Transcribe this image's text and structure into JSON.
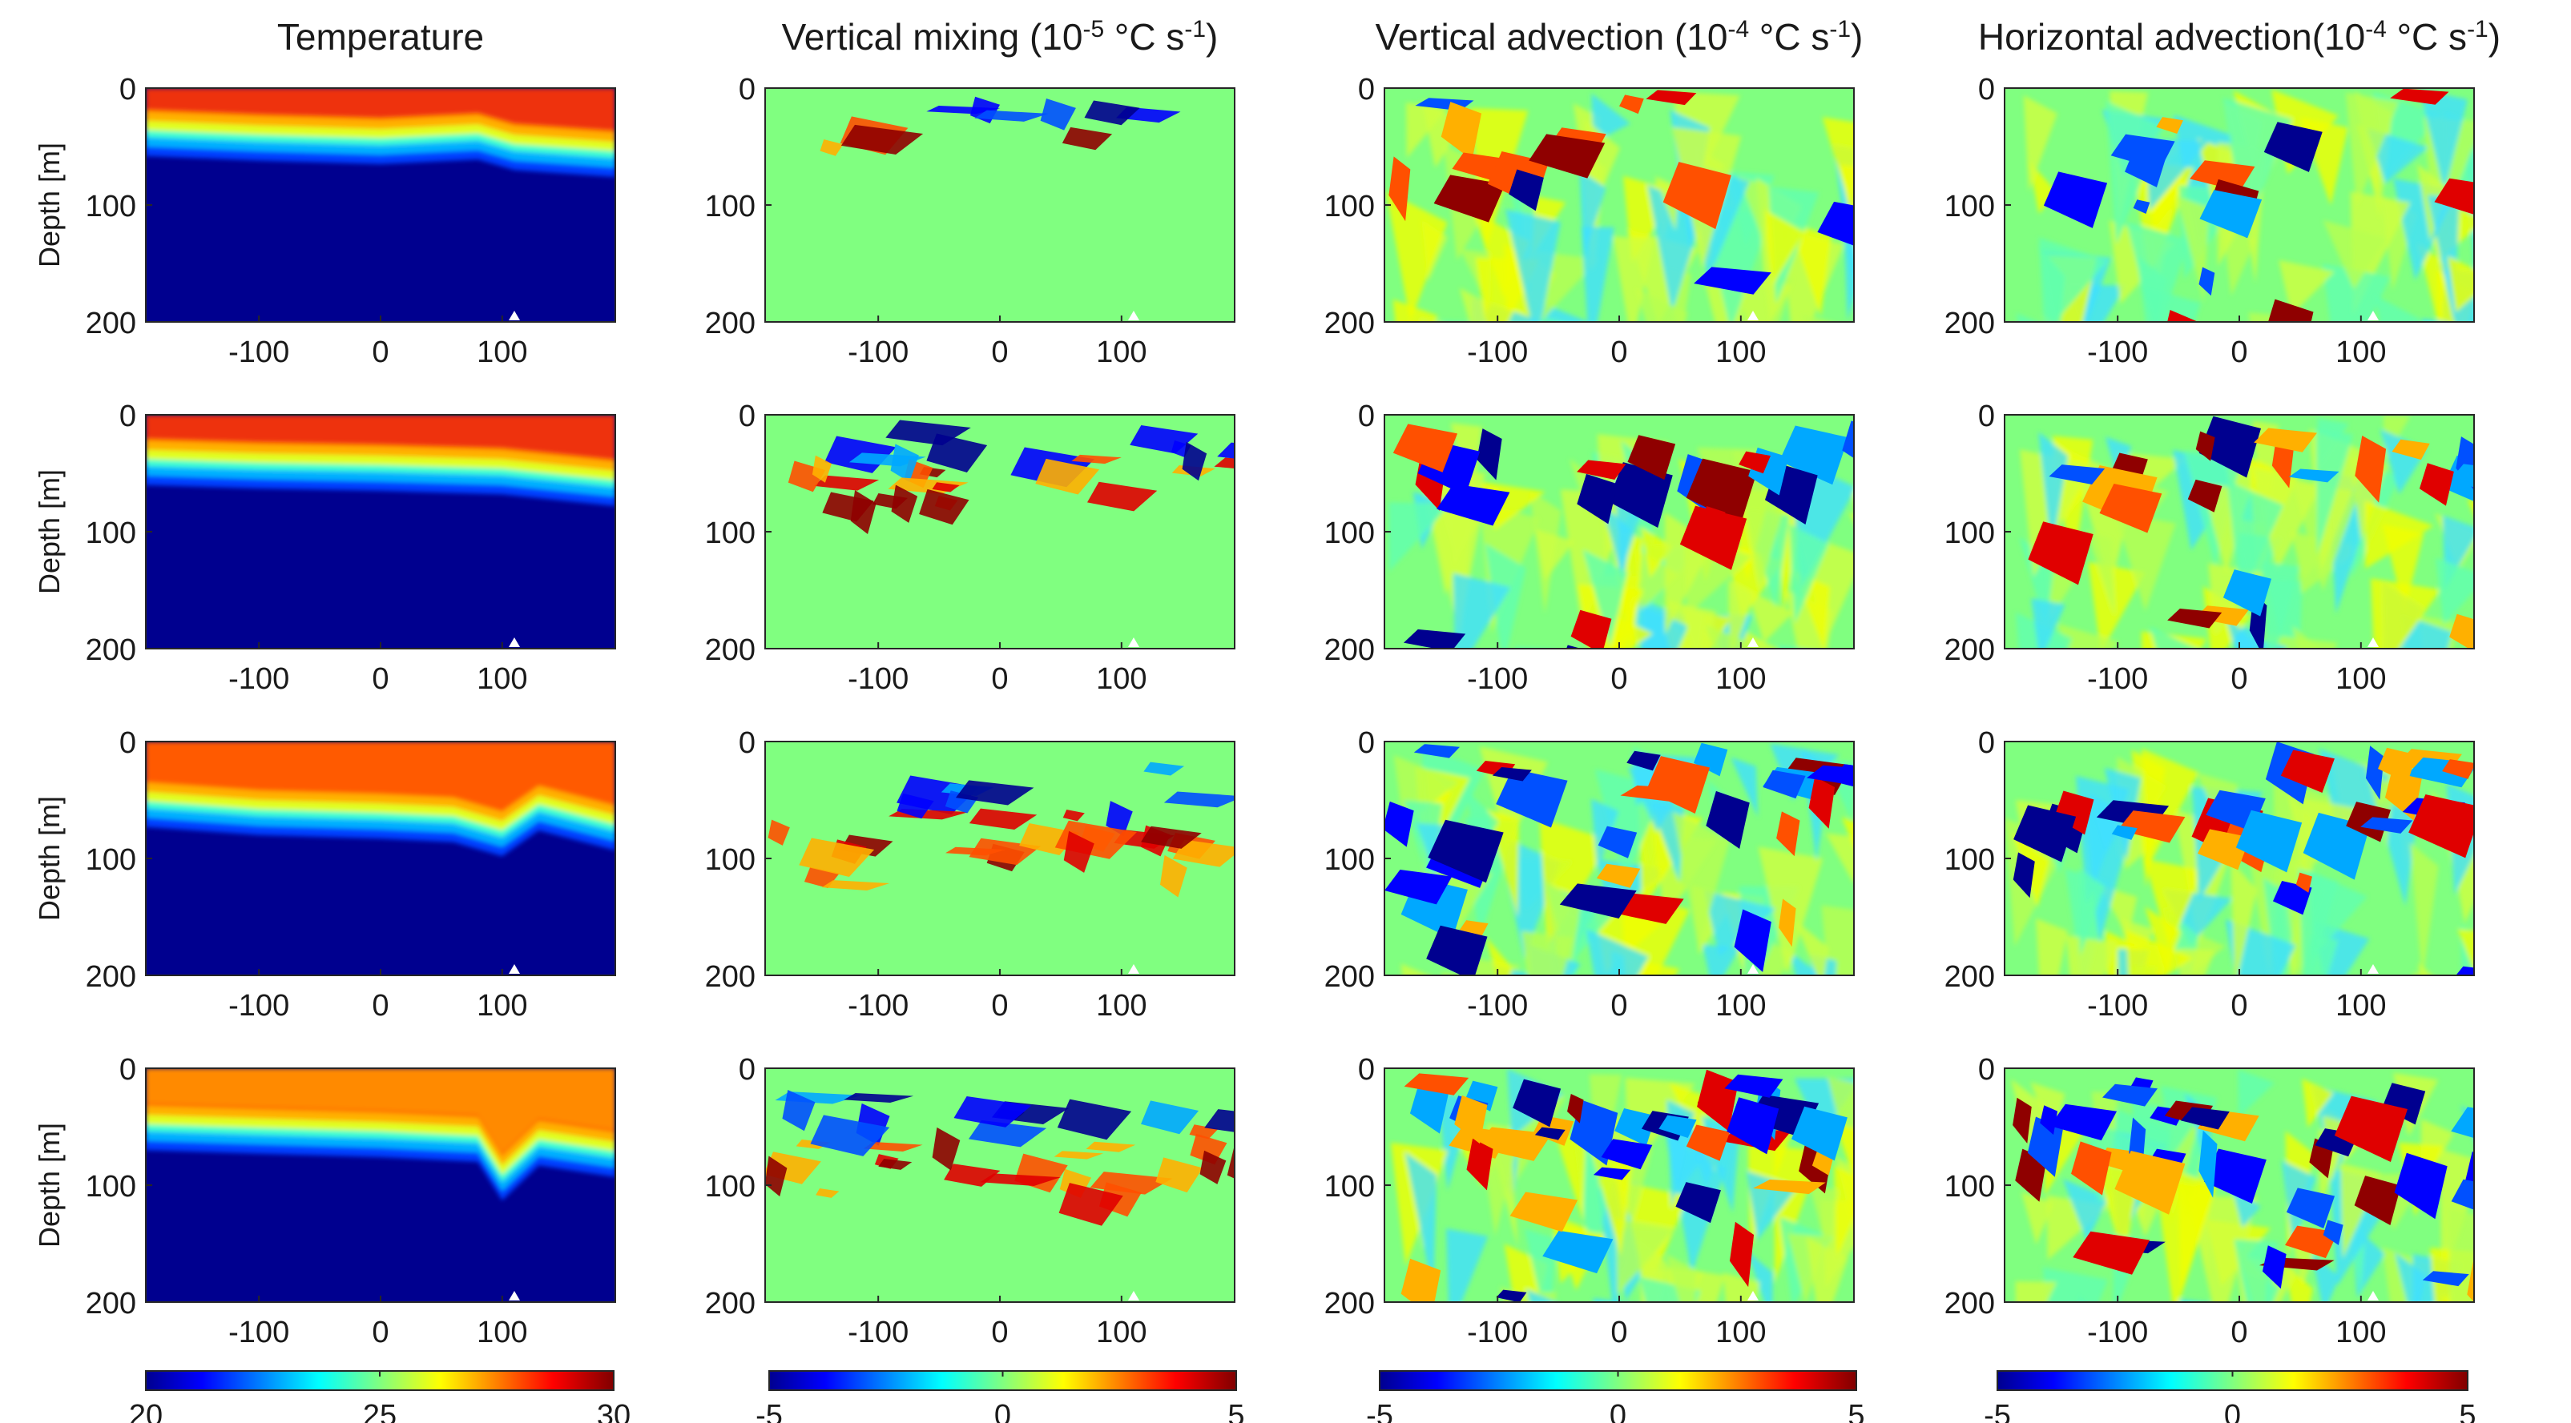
{
  "chart_data": {
    "type": "heatmap",
    "grid": "off",
    "x_ticks": [
      -100,
      0,
      100
    ],
    "x_range": [
      -193,
      193
    ],
    "y_ticks": [
      0,
      100,
      200
    ],
    "y_range": [
      0,
      200
    ],
    "ylabel": "Depth [m]",
    "marker_x": 110,
    "columns": [
      {
        "title_main": "Temperature",
        "title_exp": "",
        "title_tail": "",
        "colorbar": {
          "min": 20,
          "max": 30,
          "ticks": [
            "20",
            "25",
            "30"
          ]
        },
        "panels_thermocline_depth_m": [
          [
            [
              -193,
              40
            ],
            [
              -100,
              44
            ],
            [
              0,
              47
            ],
            [
              80,
              43
            ],
            [
              110,
              52
            ],
            [
              193,
              58
            ]
          ],
          [
            [
              -193,
              42
            ],
            [
              -100,
              45
            ],
            [
              0,
              47
            ],
            [
              100,
              50
            ],
            [
              193,
              60
            ]
          ],
          [
            [
              -193,
              55
            ],
            [
              -100,
              62
            ],
            [
              0,
              65
            ],
            [
              60,
              68
            ],
            [
              100,
              80
            ],
            [
              130,
              58
            ],
            [
              193,
              75
            ]
          ],
          [
            [
              -193,
              52
            ],
            [
              -100,
              55
            ],
            [
              0,
              58
            ],
            [
              80,
              62
            ],
            [
              100,
              95
            ],
            [
              130,
              65
            ],
            [
              193,
              75
            ]
          ]
        ],
        "panels_surface_temperature": [
          29.5,
          29.3,
          28.2,
          27.5
        ],
        "colors": {
          "cold": "#00008f",
          "warm": "#e83a1a"
        }
      },
      {
        "title_main": "Vertical mixing (10",
        "title_exp": "-5",
        "title_tail": " °C s",
        "colorbar": {
          "min": -5,
          "max": 5,
          "ticks": [
            "-5",
            "0",
            "5"
          ]
        }
      },
      {
        "title_main": "Vertical advection (10",
        "title_exp": "-4",
        "title_tail": " °C s",
        "colorbar": {
          "min": -5,
          "max": 5,
          "ticks": [
            "-5",
            "0",
            "5"
          ]
        }
      },
      {
        "title_main": "Horizontal advection(10",
        "title_exp": "-4",
        "title_tail": " °C s",
        "colorbar": {
          "min": -5,
          "max": 5,
          "ticks": [
            "-5",
            "0",
            "5"
          ]
        }
      }
    ],
    "title_unit_exp": "-1",
    "colormap": "jet"
  }
}
